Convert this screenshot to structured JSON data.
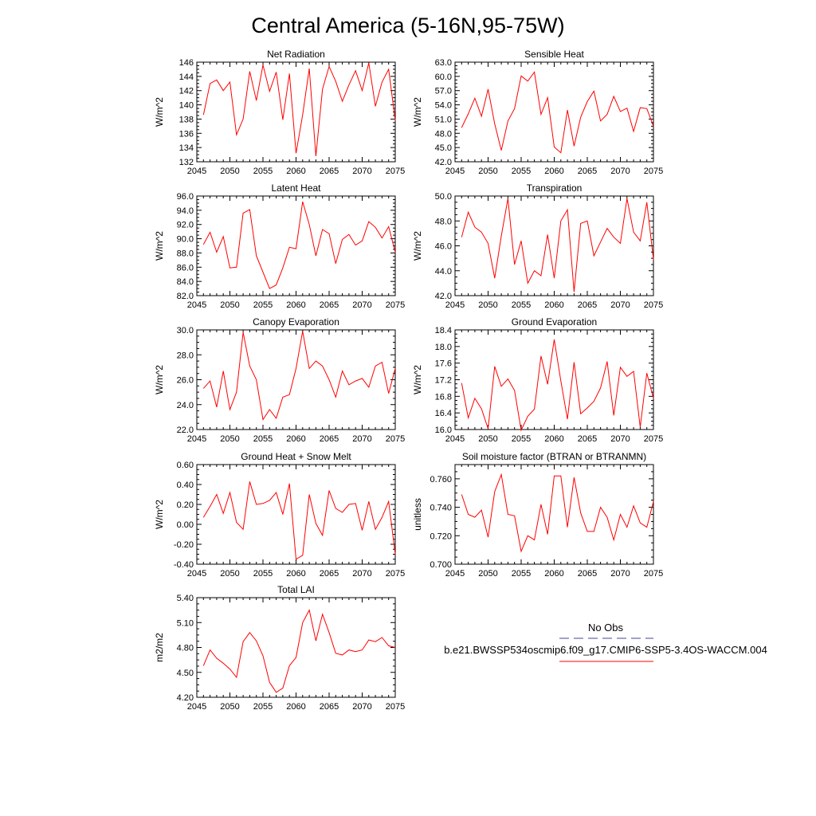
{
  "figure": {
    "title": "Central America (5-16N,95-75W)",
    "line_color": "#ff0000",
    "obs_color": "#6a6aa8"
  },
  "legend": {
    "obs_label": "No Obs",
    "model_label": "b.e21.BWSSP534oscmip6.f09_g17.CMIP6-SSP5-3.4OS-WACCM.004"
  },
  "chart_data": [
    {
      "type": "line",
      "title": "Net Radiation",
      "ylabel": "W/m^2",
      "xlim": [
        2045,
        2075
      ],
      "ylim": [
        132,
        146
      ],
      "yticks": [
        132,
        134,
        136,
        138,
        140,
        142,
        144,
        146
      ],
      "ydecimals": 0,
      "xticks": [
        2045,
        2050,
        2055,
        2060,
        2065,
        2070,
        2075
      ],
      "x": [
        2046,
        2047,
        2048,
        2049,
        2050,
        2051,
        2052,
        2053,
        2054,
        2055,
        2056,
        2057,
        2058,
        2059,
        2060,
        2061,
        2062,
        2063,
        2064,
        2065,
        2066,
        2067,
        2068,
        2069,
        2070,
        2071,
        2072,
        2073,
        2074,
        2075
      ],
      "values": [
        138.6,
        143.0,
        143.5,
        142.0,
        143.2,
        135.8,
        138.0,
        144.7,
        140.6,
        145.6,
        141.9,
        144.6,
        137.9,
        144.4,
        133.2,
        138.6,
        145.1,
        132.8,
        142.2,
        145.4,
        143.3,
        140.5,
        142.8,
        144.8,
        142.0,
        145.9,
        139.8,
        143.2,
        145.0,
        137.8
      ]
    },
    {
      "type": "line",
      "title": "Sensible Heat",
      "ylabel": "W/m^2",
      "xlim": [
        2045,
        2075
      ],
      "ylim": [
        42,
        63
      ],
      "yticks": [
        42,
        45,
        48,
        51,
        54,
        57,
        60,
        63
      ],
      "ydecimals": 1,
      "xticks": [
        2045,
        2050,
        2055,
        2060,
        2065,
        2070,
        2075
      ],
      "x": [
        2046,
        2047,
        2048,
        2049,
        2050,
        2051,
        2052,
        2053,
        2054,
        2055,
        2056,
        2057,
        2058,
        2059,
        2060,
        2061,
        2062,
        2063,
        2064,
        2065,
        2066,
        2067,
        2068,
        2069,
        2070,
        2071,
        2072,
        2073,
        2074,
        2075
      ],
      "values": [
        49.2,
        52.1,
        55.4,
        51.6,
        57.3,
        50.0,
        44.4,
        50.6,
        53.2,
        60.1,
        59.0,
        60.9,
        52.0,
        55.5,
        45.1,
        43.9,
        52.9,
        45.3,
        51.4,
        54.7,
        56.9,
        50.6,
        52.0,
        55.8,
        52.6,
        53.3,
        48.4,
        53.4,
        53.2,
        49.5
      ]
    },
    {
      "type": "line",
      "title": "Latent Heat",
      "ylabel": "W/m^2",
      "xlim": [
        2045,
        2075
      ],
      "ylim": [
        82,
        96
      ],
      "yticks": [
        82,
        84,
        86,
        88,
        90,
        92,
        94,
        96
      ],
      "ydecimals": 1,
      "xticks": [
        2045,
        2050,
        2055,
        2060,
        2065,
        2070,
        2075
      ],
      "x": [
        2046,
        2047,
        2048,
        2049,
        2050,
        2051,
        2052,
        2053,
        2054,
        2055,
        2056,
        2057,
        2058,
        2059,
        2060,
        2061,
        2062,
        2063,
        2064,
        2065,
        2066,
        2067,
        2068,
        2069,
        2070,
        2071,
        2072,
        2073,
        2074,
        2075
      ],
      "values": [
        89.2,
        90.9,
        88.1,
        90.3,
        85.9,
        86.0,
        93.6,
        94.1,
        87.6,
        85.3,
        83.0,
        83.5,
        85.9,
        88.8,
        88.6,
        95.2,
        92.0,
        87.6,
        91.3,
        90.7,
        86.5,
        89.9,
        90.6,
        89.1,
        89.7,
        92.4,
        91.6,
        90.1,
        91.7,
        88.1
      ]
    },
    {
      "type": "line",
      "title": "Transpiration",
      "ylabel": "W/m^2",
      "xlim": [
        2045,
        2075
      ],
      "ylim": [
        42,
        50
      ],
      "yticks": [
        42,
        44,
        46,
        48,
        50
      ],
      "ydecimals": 1,
      "xticks": [
        2045,
        2050,
        2055,
        2060,
        2065,
        2070,
        2075
      ],
      "x": [
        2046,
        2047,
        2048,
        2049,
        2050,
        2051,
        2052,
        2053,
        2054,
        2055,
        2056,
        2057,
        2058,
        2059,
        2060,
        2061,
        2062,
        2063,
        2064,
        2065,
        2066,
        2067,
        2068,
        2069,
        2070,
        2071,
        2072,
        2073,
        2074,
        2075
      ],
      "values": [
        46.7,
        48.7,
        47.5,
        47.1,
        46.2,
        43.4,
        46.8,
        49.8,
        44.5,
        46.4,
        43.0,
        44.0,
        43.6,
        46.9,
        43.4,
        48.0,
        48.9,
        42.3,
        47.8,
        48.0,
        45.2,
        46.3,
        47.4,
        46.7,
        46.2,
        49.8,
        47.1,
        46.4,
        49.5,
        44.9
      ]
    },
    {
      "type": "line",
      "title": "Canopy Evaporation",
      "ylabel": "W/m^2",
      "xlim": [
        2045,
        2075
      ],
      "ylim": [
        22,
        30
      ],
      "yticks": [
        22,
        24,
        26,
        28,
        30
      ],
      "ydecimals": 1,
      "xticks": [
        2045,
        2050,
        2055,
        2060,
        2065,
        2070,
        2075
      ],
      "x": [
        2046,
        2047,
        2048,
        2049,
        2050,
        2051,
        2052,
        2053,
        2054,
        2055,
        2056,
        2057,
        2058,
        2059,
        2060,
        2061,
        2062,
        2063,
        2064,
        2065,
        2066,
        2067,
        2068,
        2069,
        2070,
        2071,
        2072,
        2073,
        2074,
        2075
      ],
      "values": [
        25.3,
        25.9,
        23.8,
        26.7,
        23.6,
        25.0,
        29.8,
        27.1,
        26.0,
        22.8,
        23.6,
        22.9,
        24.6,
        24.8,
        26.9,
        29.9,
        26.9,
        27.5,
        27.1,
        26.0,
        24.6,
        26.7,
        25.6,
        25.9,
        26.1,
        25.4,
        27.1,
        27.4,
        24.9,
        26.9
      ]
    },
    {
      "type": "line",
      "title": "Ground Evaporation",
      "ylabel": "W/m^2",
      "xlim": [
        2045,
        2075
      ],
      "ylim": [
        16.0,
        18.4
      ],
      "yticks": [
        16.0,
        16.4,
        16.8,
        17.2,
        17.6,
        18.0,
        18.4
      ],
      "ydecimals": 1,
      "xticks": [
        2045,
        2050,
        2055,
        2060,
        2065,
        2070,
        2075
      ],
      "x": [
        2046,
        2047,
        2048,
        2049,
        2050,
        2051,
        2052,
        2053,
        2054,
        2055,
        2056,
        2057,
        2058,
        2059,
        2060,
        2061,
        2062,
        2063,
        2064,
        2065,
        2066,
        2067,
        2068,
        2069,
        2070,
        2071,
        2072,
        2073,
        2074,
        2075
      ],
      "values": [
        17.12,
        16.28,
        16.75,
        16.5,
        16.02,
        17.52,
        17.04,
        17.22,
        16.94,
        15.98,
        16.32,
        16.49,
        17.77,
        17.09,
        18.17,
        17.17,
        16.25,
        17.62,
        16.38,
        16.52,
        16.68,
        17.0,
        17.64,
        16.34,
        17.5,
        17.28,
        17.4,
        16.06,
        17.36,
        16.75
      ]
    },
    {
      "type": "line",
      "title": "Ground Heat + Snow Melt",
      "ylabel": "W/m^2",
      "xlim": [
        2045,
        2075
      ],
      "ylim": [
        -0.4,
        0.6
      ],
      "yticks": [
        -0.4,
        -0.2,
        0.0,
        0.2,
        0.4,
        0.6
      ],
      "ydecimals": 2,
      "xticks": [
        2045,
        2050,
        2055,
        2060,
        2065,
        2070,
        2075
      ],
      "x": [
        2046,
        2047,
        2048,
        2049,
        2050,
        2051,
        2052,
        2053,
        2054,
        2055,
        2056,
        2057,
        2058,
        2059,
        2060,
        2061,
        2062,
        2063,
        2064,
        2065,
        2066,
        2067,
        2068,
        2069,
        2070,
        2071,
        2072,
        2073,
        2074,
        2075
      ],
      "values": [
        0.07,
        0.18,
        0.3,
        0.11,
        0.32,
        0.02,
        -0.05,
        0.43,
        0.2,
        0.21,
        0.24,
        0.32,
        0.1,
        0.41,
        -0.35,
        -0.31,
        0.3,
        0.01,
        -0.11,
        0.34,
        0.16,
        0.12,
        0.2,
        0.21,
        -0.06,
        0.23,
        -0.05,
        0.07,
        0.23,
        -0.3
      ]
    },
    {
      "type": "line",
      "title": "Soil moisture factor (BTRAN or BTRANMN)",
      "ylabel": "unitless",
      "xlim": [
        2045,
        2075
      ],
      "ylim": [
        0.7,
        0.77
      ],
      "yticks": [
        0.7,
        0.72,
        0.74,
        0.76
      ],
      "ydecimals": 3,
      "xticks": [
        2045,
        2050,
        2055,
        2060,
        2065,
        2070,
        2075
      ],
      "x": [
        2046,
        2047,
        2048,
        2049,
        2050,
        2051,
        2052,
        2053,
        2054,
        2055,
        2056,
        2057,
        2058,
        2059,
        2060,
        2061,
        2062,
        2063,
        2064,
        2065,
        2066,
        2067,
        2068,
        2069,
        2070,
        2071,
        2072,
        2073,
        2074,
        2075
      ],
      "values": [
        0.749,
        0.735,
        0.733,
        0.738,
        0.719,
        0.751,
        0.763,
        0.735,
        0.734,
        0.709,
        0.72,
        0.717,
        0.742,
        0.721,
        0.762,
        0.762,
        0.726,
        0.761,
        0.736,
        0.723,
        0.723,
        0.74,
        0.733,
        0.717,
        0.735,
        0.726,
        0.741,
        0.729,
        0.726,
        0.744
      ]
    },
    {
      "type": "line",
      "title": "Total LAI",
      "ylabel": "m2/m2",
      "xlim": [
        2045,
        2075
      ],
      "ylim": [
        4.2,
        5.4
      ],
      "yticks": [
        4.2,
        4.5,
        4.8,
        5.1,
        5.4
      ],
      "ydecimals": 2,
      "xticks": [
        2045,
        2050,
        2055,
        2060,
        2065,
        2070,
        2075
      ],
      "x": [
        2046,
        2047,
        2048,
        2049,
        2050,
        2051,
        2052,
        2053,
        2054,
        2055,
        2056,
        2057,
        2058,
        2059,
        2060,
        2061,
        2062,
        2063,
        2064,
        2065,
        2066,
        2067,
        2068,
        2069,
        2070,
        2071,
        2072,
        2073,
        2074,
        2075
      ],
      "values": [
        4.58,
        4.77,
        4.67,
        4.61,
        4.54,
        4.44,
        4.87,
        4.98,
        4.88,
        4.7,
        4.38,
        4.26,
        4.31,
        4.58,
        4.68,
        5.1,
        5.25,
        4.88,
        5.2,
        4.98,
        4.73,
        4.71,
        4.77,
        4.75,
        4.77,
        4.89,
        4.87,
        4.92,
        4.82,
        4.8
      ]
    }
  ]
}
